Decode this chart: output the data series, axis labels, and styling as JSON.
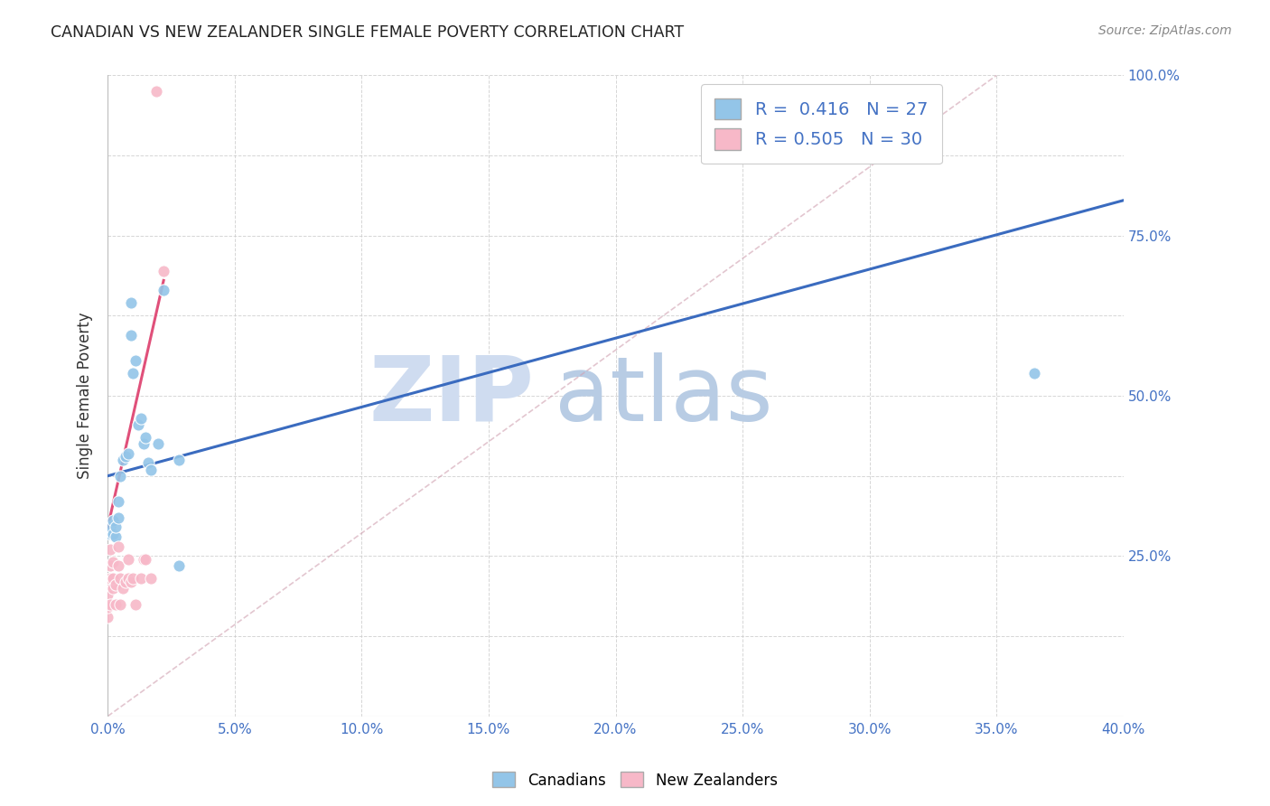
{
  "title": "CANADIAN VS NEW ZEALANDER SINGLE FEMALE POVERTY CORRELATION CHART",
  "source": "Source: ZipAtlas.com",
  "ylabel": "Single Female Poverty",
  "xlim": [
    0.0,
    0.4
  ],
  "ylim": [
    0.0,
    1.0
  ],
  "canadian_R": 0.416,
  "canadian_N": 27,
  "nz_R": 0.505,
  "nz_N": 30,
  "canadian_color": "#93c5e8",
  "nz_color": "#f7b8c8",
  "canadian_line_color": "#3a6bbf",
  "nz_line_color": "#e0507a",
  "watermark_zip": "ZIP",
  "watermark_atlas": "atlas",
  "watermark_color_zip": "#cfdcf0",
  "watermark_color_atlas": "#b8cce4",
  "grid_color": "#cccccc",
  "background_color": "#ffffff",
  "canadians_x": [
    0.001,
    0.001,
    0.002,
    0.002,
    0.003,
    0.003,
    0.004,
    0.004,
    0.005,
    0.006,
    0.007,
    0.008,
    0.009,
    0.009,
    0.01,
    0.011,
    0.012,
    0.013,
    0.014,
    0.015,
    0.016,
    0.017,
    0.02,
    0.022,
    0.028,
    0.028,
    0.365
  ],
  "canadians_y": [
    0.285,
    0.295,
    0.285,
    0.305,
    0.28,
    0.295,
    0.31,
    0.335,
    0.375,
    0.4,
    0.405,
    0.41,
    0.595,
    0.645,
    0.535,
    0.555,
    0.455,
    0.465,
    0.425,
    0.435,
    0.395,
    0.385,
    0.425,
    0.665,
    0.4,
    0.235,
    0.535
  ],
  "nz_x": [
    0.0,
    0.0,
    0.0,
    0.0,
    0.001,
    0.001,
    0.001,
    0.001,
    0.002,
    0.002,
    0.002,
    0.003,
    0.003,
    0.004,
    0.004,
    0.005,
    0.005,
    0.006,
    0.007,
    0.008,
    0.008,
    0.009,
    0.01,
    0.011,
    0.013,
    0.014,
    0.015,
    0.017,
    0.019,
    0.022
  ],
  "nz_y": [
    0.155,
    0.17,
    0.19,
    0.205,
    0.175,
    0.215,
    0.235,
    0.26,
    0.2,
    0.215,
    0.24,
    0.175,
    0.205,
    0.235,
    0.265,
    0.175,
    0.215,
    0.2,
    0.21,
    0.215,
    0.245,
    0.21,
    0.215,
    0.175,
    0.215,
    0.245,
    0.245,
    0.215,
    0.975,
    0.695
  ],
  "canadian_line_x": [
    0.0,
    0.4
  ],
  "canadian_line_y": [
    0.375,
    0.805
  ],
  "nz_line_x": [
    0.0,
    0.022
  ],
  "nz_line_y": [
    0.295,
    0.68
  ],
  "diag_line_x": [
    0.0,
    0.35
  ],
  "diag_line_y": [
    0.0,
    1.0
  ]
}
